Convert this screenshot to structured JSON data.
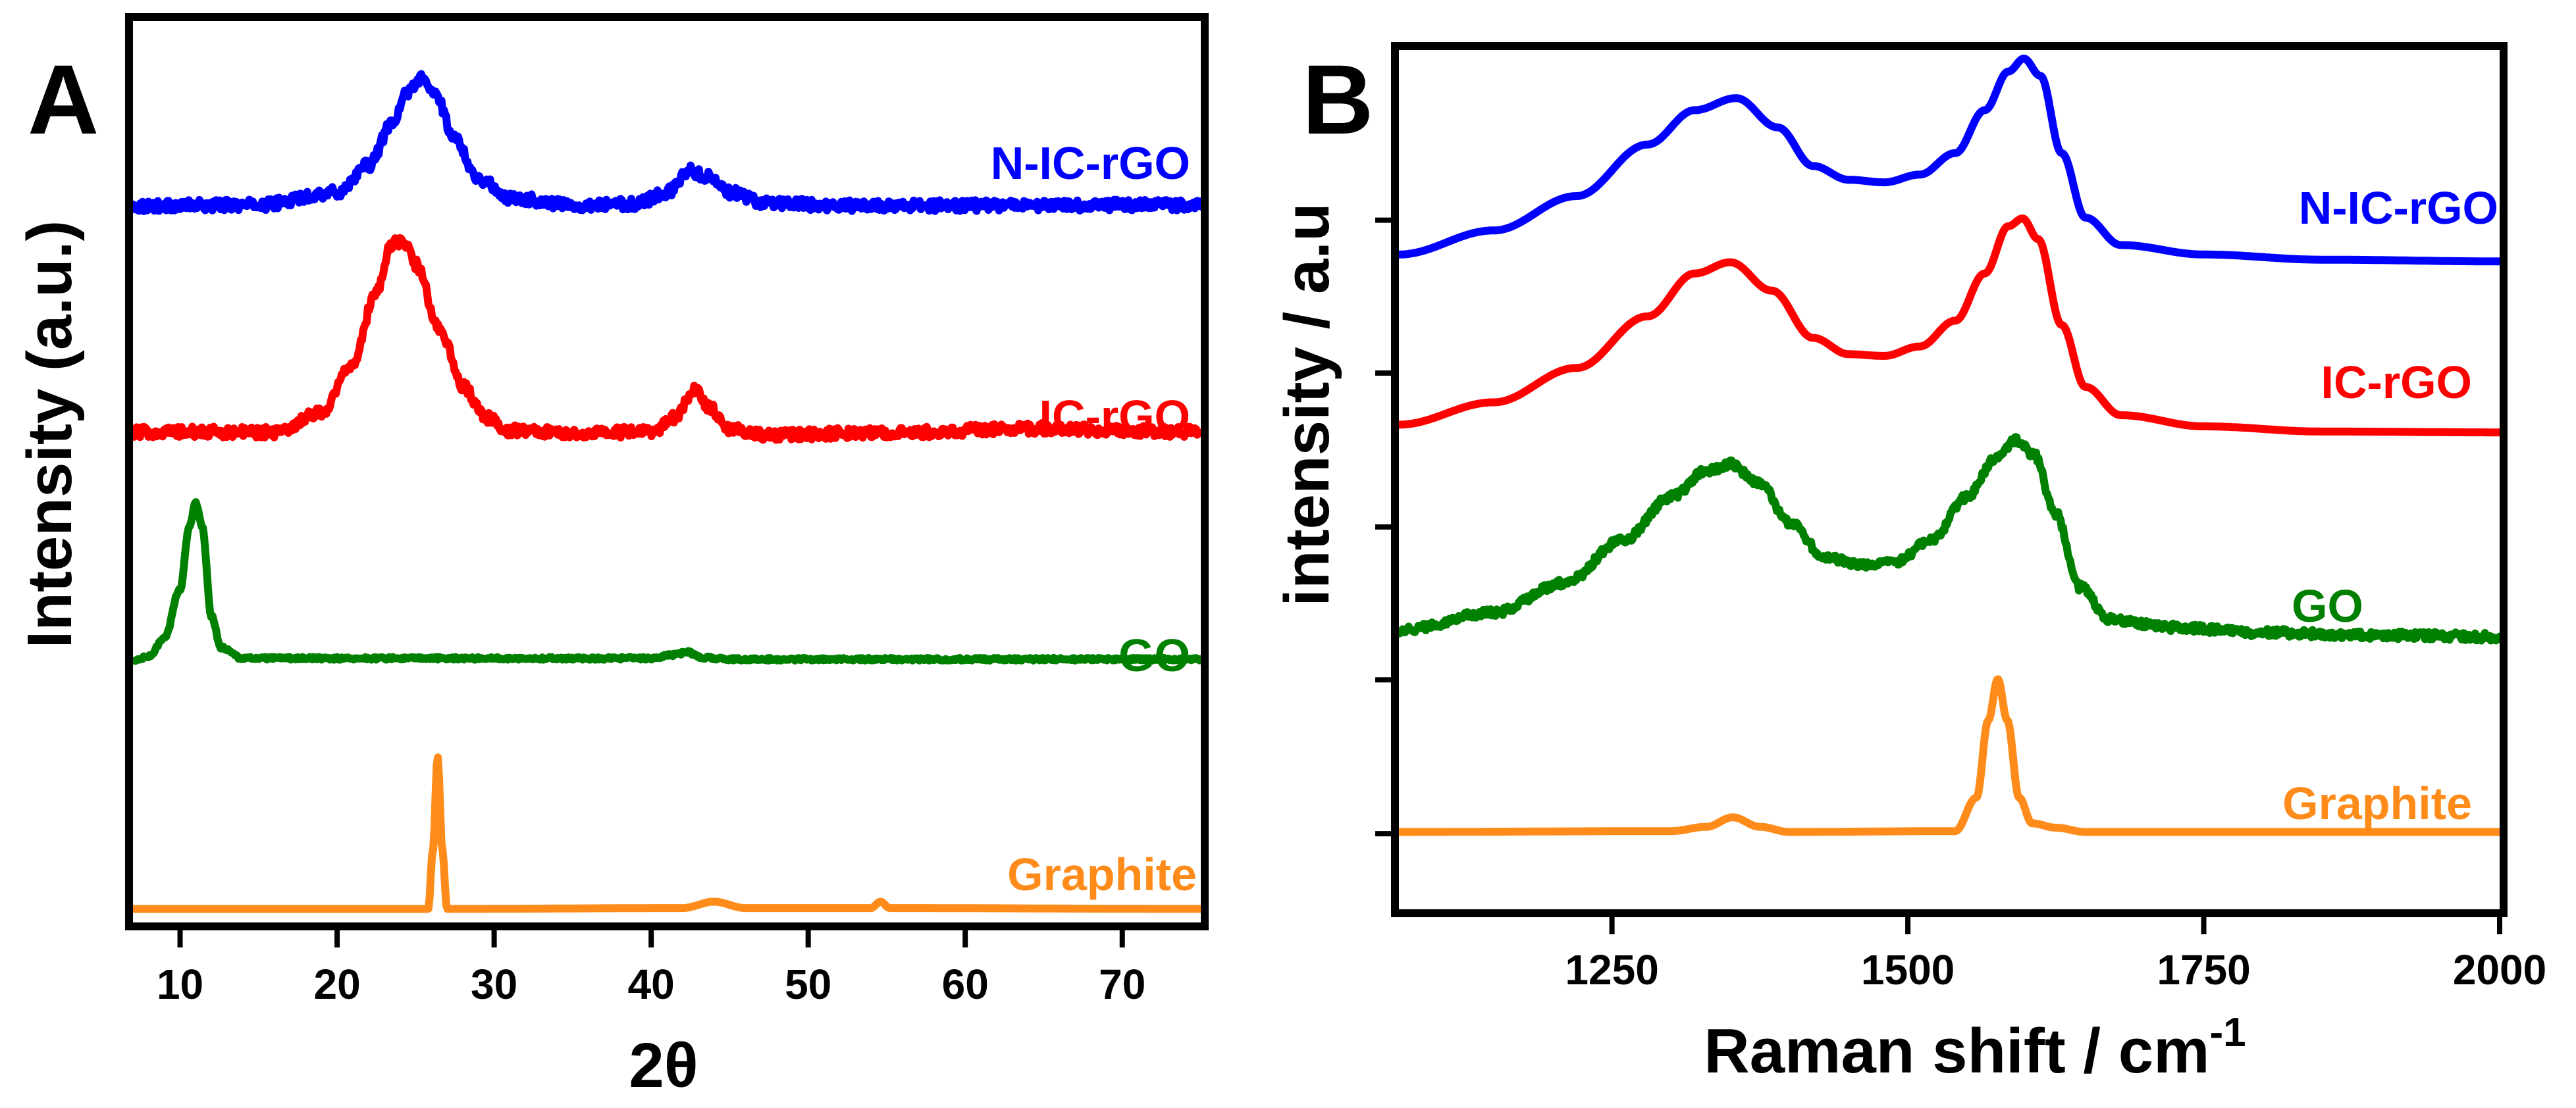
{
  "chart_data": [
    {
      "panel": "A",
      "type": "line",
      "xlabel": "2θ",
      "ylabel": "Intensity (a.u.)",
      "xlim": [
        7,
        75
      ],
      "ylim": [
        0,
        100
      ],
      "x_ticks": [
        10,
        20,
        30,
        40,
        50,
        60,
        70
      ],
      "x_tick_labels": [
        "10",
        "20",
        "30",
        "40",
        "50",
        "60",
        "70"
      ],
      "y_tick_labels": [],
      "series": [
        {
          "name": "N-IC-rGO",
          "color": "#0000ff",
          "noise": 0.6,
          "points": [
            [
              7,
              79.5
            ],
            [
              15,
              79.6
            ],
            [
              20,
              81
            ],
            [
              22,
              84
            ],
            [
              23.5,
              88.5
            ],
            [
              24.5,
              92.2
            ],
            [
              25.3,
              93.6
            ],
            [
              26.2,
              92
            ],
            [
              27.5,
              87
            ],
            [
              29,
              82.5
            ],
            [
              31,
              80.4
            ],
            [
              35,
              79.6
            ],
            [
              39,
              79.7
            ],
            [
              41,
              81
            ],
            [
              42.5,
              83.4
            ],
            [
              43.5,
              82.8
            ],
            [
              45,
              81
            ],
            [
              47,
              79.9
            ],
            [
              52,
              79.5
            ],
            [
              75,
              79.6
            ]
          ]
        },
        {
          "name": "IC-rGO",
          "color": "#ff0000",
          "noise": 0.6,
          "points": [
            [
              7,
              54.4
            ],
            [
              12,
              54.4
            ],
            [
              16,
              54.4
            ],
            [
              19,
              56.6
            ],
            [
              21,
              62
            ],
            [
              22.5,
              70
            ],
            [
              23.5,
              75.3
            ],
            [
              24.3,
              75.5
            ],
            [
              25,
              73
            ],
            [
              26.5,
              66
            ],
            [
              28,
              59.5
            ],
            [
              29.5,
              56
            ],
            [
              31,
              54.6
            ],
            [
              35,
              54.3
            ],
            [
              40,
              54.4
            ],
            [
              41.5,
              56
            ],
            [
              42.8,
              59
            ],
            [
              43.8,
              57
            ],
            [
              45,
              54.8
            ],
            [
              47,
              54.1
            ],
            [
              55,
              54.3
            ],
            [
              64,
              54.8
            ],
            [
              75,
              54.4
            ]
          ]
        },
        {
          "name": "GO",
          "color": "#008000",
          "noise": 0.15,
          "points": [
            [
              7,
              29
            ],
            [
              8,
              29.5
            ],
            [
              9,
              31.5
            ],
            [
              10,
              37
            ],
            [
              10.6,
              44
            ],
            [
              11,
              46.5
            ],
            [
              11.4,
              44
            ],
            [
              12,
              34
            ],
            [
              12.6,
              30.5
            ],
            [
              14,
              29.3
            ],
            [
              20,
              29.3
            ],
            [
              40,
              29.3
            ],
            [
              41.5,
              29.7
            ],
            [
              42.3,
              30
            ],
            [
              43.2,
              29.4
            ],
            [
              45,
              29.2
            ],
            [
              75,
              29.2
            ]
          ]
        },
        {
          "name": "Graphite",
          "color": "#ff8c1a",
          "noise": 0,
          "points": [
            [
              7,
              1.5
            ],
            [
              25.8,
              1.5
            ],
            [
              26.1,
              8
            ],
            [
              26.4,
              18.4
            ],
            [
              26.7,
              8
            ],
            [
              27,
              1.5
            ],
            [
              42,
              1.6
            ],
            [
              44,
              2.3
            ],
            [
              46,
              1.6
            ],
            [
              54,
              1.6
            ],
            [
              54.6,
              2.3
            ],
            [
              55.2,
              1.6
            ],
            [
              75,
              1.5
            ]
          ]
        }
      ]
    },
    {
      "panel": "B",
      "type": "line",
      "xlabel": "Raman shift / cm",
      "xlabel_superscript": "-1",
      "ylabel": "intensity / a.u",
      "xlim": [
        1070,
        2000
      ],
      "ylim": [
        0,
        100
      ],
      "x_ticks": [
        1250,
        1500,
        1750,
        2000
      ],
      "x_tick_labels": [
        "1250",
        "1500",
        "1750",
        "2000"
      ],
      "y_ticks": [
        8.8,
        26.7,
        44.5,
        62.4,
        80.2
      ],
      "y_tick_labels": [],
      "series": [
        {
          "name": "N-IC-rGO",
          "color": "#0000ff",
          "noise": 0,
          "points": [
            [
              1070,
              76.2
            ],
            [
              1150,
              79
            ],
            [
              1220,
              83
            ],
            [
              1280,
              89
            ],
            [
              1320,
              93
            ],
            [
              1355,
              94.4
            ],
            [
              1390,
              91
            ],
            [
              1420,
              86.5
            ],
            [
              1450,
              84.9
            ],
            [
              1480,
              84.6
            ],
            [
              1510,
              85.5
            ],
            [
              1540,
              88
            ],
            [
              1565,
              93
            ],
            [
              1585,
              97.5
            ],
            [
              1598,
              99
            ],
            [
              1612,
              97
            ],
            [
              1630,
              88
            ],
            [
              1650,
              80.5
            ],
            [
              1680,
              77.3
            ],
            [
              1750,
              76.2
            ],
            [
              1850,
              75.6
            ],
            [
              2000,
              75.4
            ]
          ]
        },
        {
          "name": "IC-rGO",
          "color": "#ff0000",
          "noise": 0,
          "points": [
            [
              1070,
              56.4
            ],
            [
              1150,
              59
            ],
            [
              1220,
              63
            ],
            [
              1280,
              69
            ],
            [
              1320,
              74
            ],
            [
              1350,
              75.3
            ],
            [
              1385,
              72
            ],
            [
              1420,
              66.5
            ],
            [
              1450,
              64.6
            ],
            [
              1480,
              64.4
            ],
            [
              1510,
              65.5
            ],
            [
              1540,
              68.5
            ],
            [
              1565,
              74
            ],
            [
              1585,
              79.5
            ],
            [
              1597,
              80.4
            ],
            [
              1610,
              78
            ],
            [
              1630,
              68
            ],
            [
              1650,
              60.8
            ],
            [
              1680,
              57.5
            ],
            [
              1750,
              56.2
            ],
            [
              1850,
              55.6
            ],
            [
              2000,
              55.5
            ]
          ]
        },
        {
          "name": "GO",
          "color": "#008000",
          "noise": 0.45,
          "points": [
            [
              1070,
              32.5
            ],
            [
              1150,
              34.5
            ],
            [
              1210,
              38
            ],
            [
              1260,
              43
            ],
            [
              1300,
              48
            ],
            [
              1330,
              51
            ],
            [
              1350,
              51.8
            ],
            [
              1375,
              49.5
            ],
            [
              1400,
              45
            ],
            [
              1430,
              41
            ],
            [
              1460,
              40
            ],
            [
              1490,
              40.5
            ],
            [
              1520,
              43
            ],
            [
              1550,
              48
            ],
            [
              1575,
              52.5
            ],
            [
              1592,
              54.6
            ],
            [
              1606,
              53
            ],
            [
              1625,
              46
            ],
            [
              1645,
              37.5
            ],
            [
              1670,
              33.8
            ],
            [
              1720,
              32.8
            ],
            [
              1800,
              32.2
            ],
            [
              1900,
              31.9
            ],
            [
              2000,
              31.7
            ]
          ]
        },
        {
          "name": "Graphite",
          "color": "#ff8c1a",
          "noise": 0,
          "points": [
            [
              1070,
              9
            ],
            [
              1300,
              9.1
            ],
            [
              1330,
              9.6
            ],
            [
              1352,
              10.7
            ],
            [
              1375,
              9.6
            ],
            [
              1400,
              9
            ],
            [
              1540,
              9.1
            ],
            [
              1558,
              13
            ],
            [
              1568,
              22
            ],
            [
              1576,
              26.8
            ],
            [
              1584,
              22
            ],
            [
              1594,
              13
            ],
            [
              1605,
              10
            ],
            [
              1625,
              9.5
            ],
            [
              1650,
              9
            ],
            [
              2000,
              9
            ]
          ]
        }
      ]
    }
  ]
}
